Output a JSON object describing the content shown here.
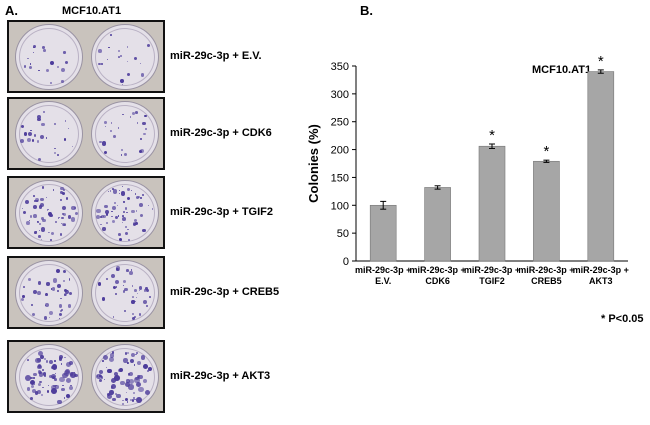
{
  "panel_a": {
    "label": "A.",
    "title": "MCF10.AT1",
    "rows": [
      {
        "label": "miR-29c-3p + E.V.",
        "density": 18,
        "size": 2.2
      },
      {
        "label": "miR-29c-3p + CDK6",
        "density": 24,
        "size": 2.5
      },
      {
        "label": "miR-29c-3p + TGIF2",
        "density": 60,
        "size": 2.4
      },
      {
        "label": "miR-29c-3p + CREB5",
        "density": 40,
        "size": 2.3
      },
      {
        "label": "miR-29c-3p + AKT3",
        "density": 70,
        "size": 3.6
      }
    ]
  },
  "panel_b": {
    "label": "B.",
    "significance_note": "* P<0.05"
  },
  "chart_data": {
    "type": "bar",
    "title": "MCF10.AT1",
    "ylabel": "Colonies (%)",
    "xlabel": "",
    "ylim": [
      0,
      350
    ],
    "yticks": [
      0,
      50,
      100,
      150,
      200,
      250,
      300,
      350
    ],
    "categories": [
      [
        "miR-29c-3p +",
        "E.V."
      ],
      [
        "miR-29c-3p +",
        "CDK6"
      ],
      [
        "miR-29c-3p +",
        "TGIF2"
      ],
      [
        "miR-29c-3p +",
        "CREB5"
      ],
      [
        "miR-29c-3p +",
        "AKT3"
      ]
    ],
    "values": [
      100,
      132,
      206,
      179,
      340
    ],
    "errors": [
      7,
      3,
      4,
      2,
      3
    ],
    "significant": [
      "",
      "",
      "*",
      "*",
      "*"
    ],
    "bar_color": "#a6a6a6",
    "grid": false,
    "legend": "none"
  }
}
